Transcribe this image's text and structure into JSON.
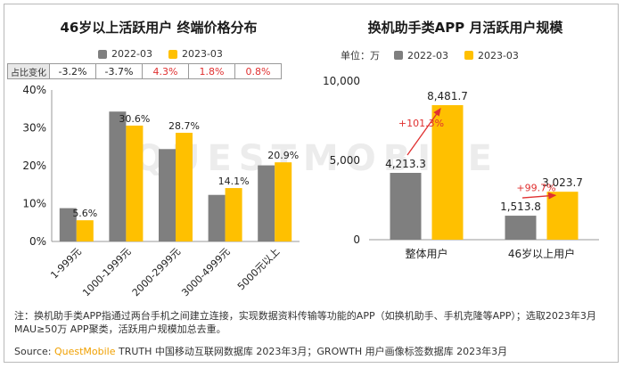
{
  "left": {
    "title": "46岁以上活跃用户 终端价格分布",
    "legend": [
      {
        "label": "2022-03",
        "color": "#7f7f7f"
      },
      {
        "label": "2023-03",
        "color": "#ffc000"
      }
    ],
    "change_row": {
      "header": "占比变化",
      "values": [
        "-3.2%",
        "-3.7%",
        "4.3%",
        "1.8%",
        "0.8%"
      ],
      "colors": [
        "#222222",
        "#222222",
        "#e03030",
        "#e03030",
        "#e03030"
      ]
    }
  },
  "right": {
    "title": "换机助手类APP 月活跃用户规模",
    "unit": "单位：万",
    "legend": [
      {
        "label": "2022-03",
        "color": "#7f7f7f"
      },
      {
        "label": "2023-03",
        "color": "#ffc000"
      }
    ],
    "growth": [
      "+101.3%",
      "+99.7%"
    ]
  },
  "watermark": "QUESTMOBILE",
  "note": "注：换机助手类APP指通过两台手机之间建立连接，实现数据资料传输等功能的APP（如换机助手、手机克隆等APP）；选取2023年3月MAU≥50万 APP聚类，活跃用户规模加总去重。",
  "source": {
    "prefix": "Source: ",
    "brand": "QuestMobile",
    "text": " TRUTH 中国移动互联网数据库 2023年3月；GROWTH 用户画像标签数据库 2023年3月"
  },
  "chart_data": [
    {
      "type": "bar",
      "title": "46岁以上活跃用户 终端价格分布",
      "categories": [
        "1-999元",
        "1000-1999元",
        "2000-2999元",
        "3000-4999元",
        "5000元以上"
      ],
      "series": [
        {
          "name": "2022-03",
          "values": [
            8.8,
            34.3,
            24.4,
            12.3,
            20.1
          ],
          "color": "#7f7f7f",
          "labels": [
            "",
            "",
            "",
            "",
            ""
          ]
        },
        {
          "name": "2023-03",
          "values": [
            5.6,
            30.6,
            28.7,
            14.1,
            20.9
          ],
          "color": "#ffc000",
          "labels": [
            "5.6%",
            "30.6%",
            "28.7%",
            "14.1%",
            "20.9%"
          ]
        }
      ],
      "yticks": [
        "0%",
        "10%",
        "20%",
        "30%",
        "40%"
      ],
      "ylim": [
        0,
        40
      ],
      "grid": false
    },
    {
      "type": "bar",
      "title": "换机助手类APP 月活跃用户规模",
      "categories": [
        "整体用户",
        "46岁以上用户"
      ],
      "series": [
        {
          "name": "2022-03",
          "values": [
            4213.3,
            1513.8
          ],
          "color": "#7f7f7f",
          "labels": [
            "4,213.3",
            "1,513.8"
          ]
        },
        {
          "name": "2023-03",
          "values": [
            8481.7,
            3023.7
          ],
          "color": "#ffc000",
          "labels": [
            "8,481.7",
            "3,023.7"
          ]
        }
      ],
      "yticks": [
        "0",
        "5,000",
        "10,000"
      ],
      "ylim": [
        0,
        10000
      ],
      "grid": false
    }
  ]
}
